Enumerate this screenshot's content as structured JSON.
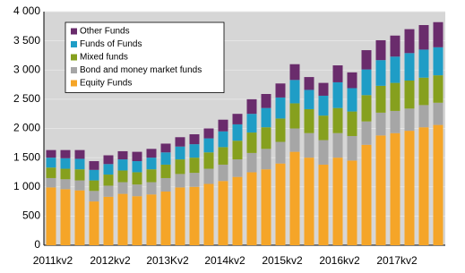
{
  "chart_data": {
    "type": "stacked_bar",
    "categories": [
      "2011kv2",
      null,
      null,
      null,
      "2012kv2",
      null,
      null,
      null,
      "2013Kv2",
      null,
      null,
      null,
      "2014kv2",
      null,
      null,
      null,
      "2015kv2",
      null,
      null,
      null,
      "2016kv2",
      null,
      null,
      null,
      "2017kv2",
      null,
      null,
      null
    ],
    "series": [
      {
        "name": "Equity Funds",
        "color": "#f5a528",
        "values": [
          990,
          960,
          940,
          750,
          830,
          880,
          840,
          870,
          920,
          990,
          1000,
          1050,
          1100,
          1170,
          1250,
          1300,
          1400,
          1600,
          1500,
          1380,
          1500,
          1450,
          1720,
          1880,
          1920,
          1960,
          2020,
          2060
        ]
      },
      {
        "name": "Bond and money market funds",
        "color": "#a6a6a6",
        "values": [
          160,
          170,
          170,
          180,
          190,
          200,
          200,
          210,
          230,
          230,
          240,
          260,
          280,
          300,
          330,
          350,
          370,
          400,
          420,
          420,
          420,
          420,
          400,
          390,
          380,
          380,
          380,
          380
        ]
      },
      {
        "name": "Mixed funds",
        "color": "#86a01e",
        "values": [
          180,
          180,
          190,
          180,
          190,
          200,
          210,
          220,
          230,
          250,
          260,
          280,
          300,
          320,
          350,
          370,
          400,
          430,
          410,
          420,
          430,
          420,
          450,
          460,
          480,
          480,
          470,
          470
        ]
      },
      {
        "name": "Funds of Funds",
        "color": "#1f9dc6",
        "values": [
          170,
          180,
          180,
          180,
          180,
          190,
          190,
          200,
          210,
          220,
          230,
          240,
          270,
          280,
          320,
          330,
          360,
          400,
          330,
          340,
          440,
          400,
          440,
          440,
          450,
          470,
          480,
          480
        ]
      },
      {
        "name": "Other Funds",
        "color": "#6a2c6c",
        "values": [
          130,
          140,
          150,
          150,
          150,
          140,
          160,
          150,
          150,
          160,
          170,
          170,
          200,
          180,
          250,
          240,
          240,
          270,
          220,
          220,
          290,
          270,
          330,
          340,
          360,
          410,
          420,
          430
        ]
      }
    ],
    "ylim": [
      0,
      4000
    ],
    "yticks": [
      0,
      500,
      {
        "value": 1000,
        "label": "1 000"
      },
      {
        "value": 1500,
        "label": "1 500"
      },
      {
        "value": 2000,
        "label": "2 000"
      },
      {
        "value": 2500,
        "label": "2 500"
      },
      {
        "value": 3000,
        "label": "3 000"
      },
      {
        "value": 3500,
        "label": "3 500"
      },
      {
        "value": 4000,
        "label": "4 000"
      }
    ],
    "grid": true
  }
}
